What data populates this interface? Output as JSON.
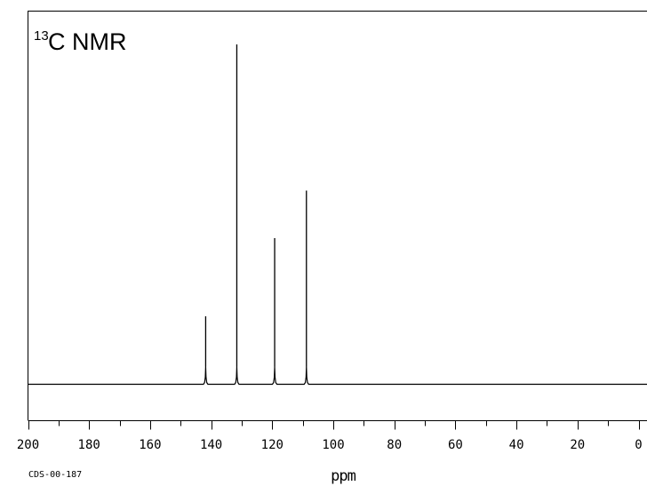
{
  "chart_data": {
    "type": "line",
    "title_superscript": "13",
    "title_main": "C NMR",
    "xlabel": "ppm",
    "ylabel": "",
    "x_reversed": true,
    "xlim": [
      200,
      0
    ],
    "ylim": [
      0,
      1
    ],
    "grid": false,
    "x_ticks": [
      200,
      180,
      160,
      140,
      120,
      100,
      80,
      60,
      40,
      20,
      0
    ],
    "x_tick_labels": [
      "200",
      "180",
      "160",
      "140",
      "120",
      "100",
      "80",
      "60",
      "40",
      "20",
      "0"
    ],
    "peaks": [
      {
        "ppm": 141.8,
        "intensity": 0.2
      },
      {
        "ppm": 131.6,
        "intensity": 1.0
      },
      {
        "ppm": 119.2,
        "intensity": 0.43
      },
      {
        "ppm": 108.8,
        "intensity": 0.57
      }
    ],
    "footnote": "CDS-00-187"
  }
}
